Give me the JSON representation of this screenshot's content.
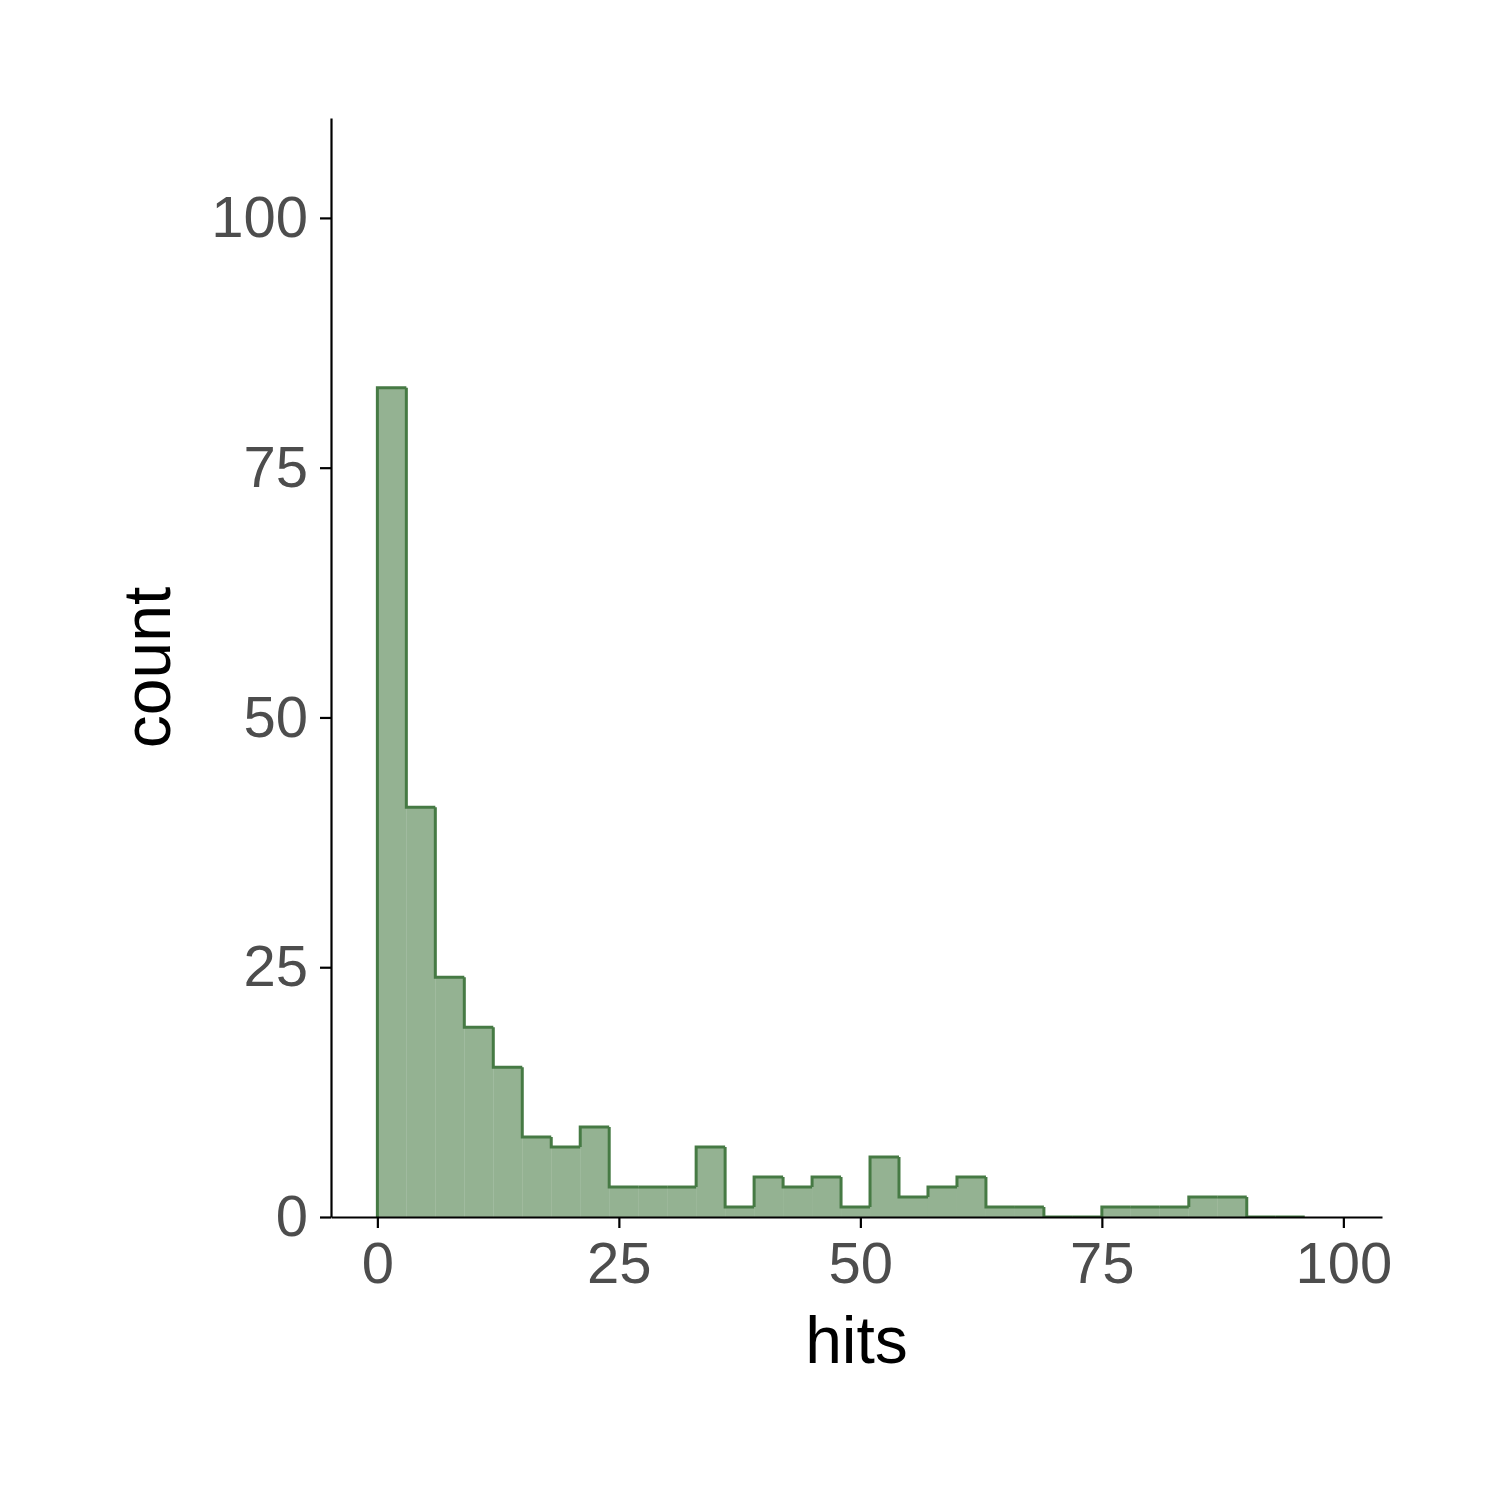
{
  "chart_data": {
    "type": "histogram",
    "x_label": "hits",
    "y_label": "count",
    "bins": [
      0,
      3,
      6,
      9,
      12,
      15,
      18,
      21,
      24,
      27,
      30,
      33,
      36,
      39,
      42,
      45,
      48,
      51,
      54,
      57,
      60,
      63,
      66,
      69,
      72,
      75,
      78,
      81,
      84,
      87,
      90,
      93,
      96
    ],
    "counts": [
      83,
      41,
      24,
      19,
      15,
      8,
      7,
      9,
      3,
      3,
      3,
      7,
      1,
      4,
      3,
      4,
      1,
      6,
      2,
      3,
      4,
      1,
      1,
      0,
      0,
      1,
      1,
      1,
      2,
      2,
      0,
      0
    ],
    "color": "#467a44",
    "xlim": [
      -4.8,
      104
    ],
    "ylim": [
      0,
      110
    ],
    "xticks": [
      0,
      25,
      50,
      75,
      100
    ],
    "yticks": [
      0,
      25,
      50,
      75,
      100
    ],
    "grid": false
  }
}
